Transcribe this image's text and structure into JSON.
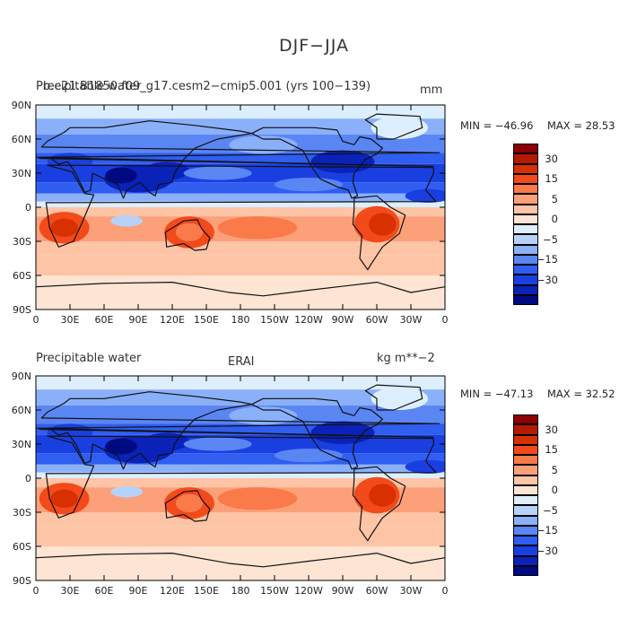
{
  "title": "DJF−JJA",
  "panels": [
    {
      "left_title": "Precipitable water",
      "left_title_overlay": "b.e21.B1850.f09_g17.cesm2−cmip5.001 (yrs 100−139)",
      "center_title": "",
      "units": "mm",
      "min_label": "MIN = −46.96",
      "max_label": "MAX =  28.53"
    },
    {
      "left_title": "Precipitable water",
      "left_title_overlay": "",
      "center_title": "ERAI",
      "units": "kg m**−2",
      "min_label": "MIN = −47.13",
      "max_label": "MAX =  32.52"
    }
  ],
  "lat_labels": [
    "90N",
    "60N",
    "30N",
    "0",
    "30S",
    "60S",
    "90S"
  ],
  "lon_labels": [
    "0",
    "30E",
    "60E",
    "90E",
    "120E",
    "150E",
    "180",
    "150W",
    "120W",
    "90W",
    "60W",
    "30W",
    "0"
  ],
  "colorbar": {
    "labels": [
      "30",
      "15",
      "5",
      "0",
      "−5",
      "−15",
      "−30"
    ],
    "colors": [
      "#8b0000",
      "#b51a00",
      "#d83000",
      "#f24a1a",
      "#fa7a4a",
      "#fca07a",
      "#fdc4a6",
      "#fde4d3",
      "#ddeefc",
      "#b6d2fb",
      "#8ab0fa",
      "#5a86f4",
      "#2f5ef0",
      "#1a3fe0",
      "#0a22b8",
      "#000a80"
    ]
  }
}
